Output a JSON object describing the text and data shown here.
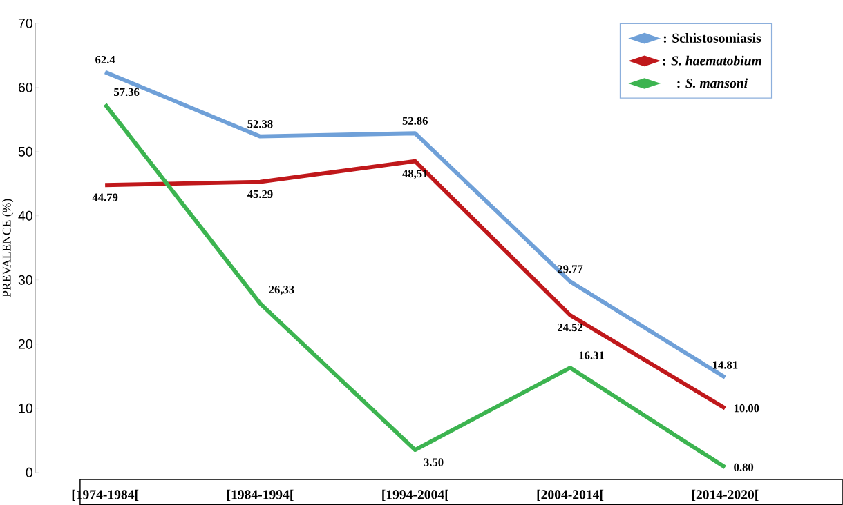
{
  "chart_data": {
    "type": "line",
    "ylabel": "PREVALENCE (%)",
    "categories": [
      "[1974-1984[",
      "[1984-1994[",
      "[1994-2004[",
      "[2004-2014[",
      "[2014-2020["
    ],
    "series": [
      {
        "name": ": Schistosomiasis",
        "color": "#6fa0d8",
        "values": [
          62.4,
          52.38,
          52.86,
          29.77,
          14.81
        ],
        "value_labels": [
          "62.4",
          "52.38",
          "52.86",
          "29.77",
          "14.81"
        ]
      },
      {
        "name": ": *S. haematobium*",
        "color": "#c0181b",
        "values": [
          44.79,
          45.29,
          48.51,
          24.52,
          10.0
        ],
        "value_labels": [
          "44.79",
          "45.29",
          "48,51",
          "24.52",
          "10.00"
        ]
      },
      {
        "name": ": *S. mansoni*",
        "color": "#3cb450",
        "values": [
          57.36,
          26.33,
          3.5,
          16.31,
          0.8
        ],
        "value_labels": [
          "57.36",
          "26,33",
          "3.50",
          "16.31",
          "0.80"
        ]
      }
    ],
    "ylim": [
      0,
      70
    ],
    "yticks": [
      0,
      10,
      20,
      30,
      40,
      50,
      60,
      70
    ],
    "legend": "top right",
    "marker": "none",
    "line_style": "solid",
    "grid": false
  }
}
